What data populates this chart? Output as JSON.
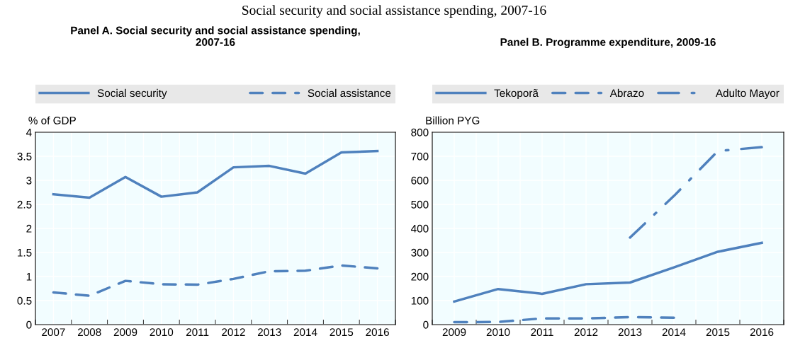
{
  "chart_data": [
    {
      "type": "line",
      "title": "Panel A. Social security and social assistance spending,\n2007-16",
      "ylabel": "% of GDP",
      "categories": [
        "2007",
        "2008",
        "2009",
        "2010",
        "2011",
        "2012",
        "2013",
        "2014",
        "2015",
        "2016"
      ],
      "series": [
        {
          "name": "Social security",
          "color": "#4f81bd",
          "line_style": "solid",
          "values": [
            2.71,
            2.64,
            3.07,
            2.66,
            2.75,
            3.27,
            3.3,
            3.14,
            3.58,
            3.61
          ]
        },
        {
          "name": "Social assistance",
          "color": "#4f81bd",
          "line_style": "dashed",
          "values": [
            0.67,
            0.6,
            0.91,
            0.84,
            0.83,
            0.95,
            1.11,
            1.12,
            1.23,
            1.17
          ]
        }
      ],
      "ylim": [
        0,
        4
      ],
      "yticks": [
        0,
        0.5,
        1,
        1.5,
        2,
        2.5,
        3,
        3.5,
        4
      ],
      "grid": true,
      "legend": "top",
      "marker": "none",
      "annotations": [
        "Social security and social assistance spending, 2007-16"
      ]
    },
    {
      "type": "line",
      "title": "Panel B. Programme expenditure, 2009-16",
      "ylabel": "Billion PYG",
      "categories": [
        "2009",
        "2010",
        "2011",
        "2012",
        "2013",
        "2014",
        "2015",
        "2016"
      ],
      "series": [
        {
          "name": "Tekoporã",
          "color": "#4f81bd",
          "line_style": "solid",
          "values": [
            96,
            148,
            128,
            168,
            175,
            238,
            303,
            340
          ]
        },
        {
          "name": "Abrazo",
          "color": "#4f81bd",
          "line_style": "dashed",
          "values": [
            10,
            11,
            26,
            26,
            31,
            29,
            null,
            null
          ]
        },
        {
          "name": "Adulto Mayor",
          "color": "#4f81bd",
          "line_style": "dashdot",
          "values": [
            null,
            null,
            null,
            null,
            362,
            535,
            722,
            738
          ]
        }
      ],
      "ylim": [
        0,
        800
      ],
      "yticks": [
        0,
        100,
        200,
        300,
        400,
        500,
        600,
        700,
        800
      ],
      "grid": true,
      "legend": "top",
      "marker": "none"
    }
  ]
}
